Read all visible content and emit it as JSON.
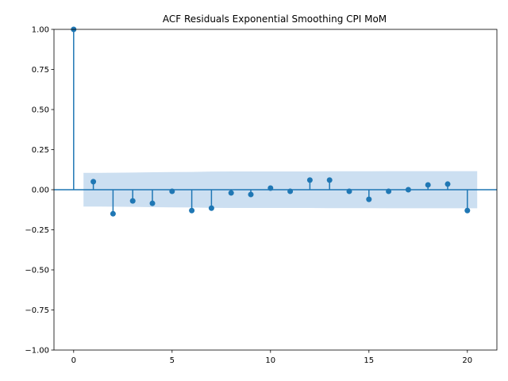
{
  "chart_data": {
    "type": "stem",
    "title": "ACF Residuals Exponential Smoothing CPI MoM",
    "xlabel": "",
    "ylabel": "",
    "xlim": [
      -1,
      21.5
    ],
    "ylim": [
      -1.0,
      1.0
    ],
    "x_ticks": [
      0,
      5,
      10,
      15,
      20
    ],
    "y_ticks": [
      -1.0,
      -0.75,
      -0.5,
      -0.25,
      0.0,
      0.25,
      0.5,
      0.75,
      1.0
    ],
    "y_tick_labels": [
      "−1.00",
      "−0.75",
      "−0.50",
      "−0.25",
      "0.00",
      "0.25",
      "0.50",
      "0.75",
      "1.00"
    ],
    "grid": false,
    "lags": [
      0,
      1,
      2,
      3,
      4,
      5,
      6,
      7,
      8,
      9,
      10,
      11,
      12,
      13,
      14,
      15,
      16,
      17,
      18,
      19,
      20
    ],
    "values": [
      1.0,
      0.05,
      -0.15,
      -0.07,
      -0.085,
      -0.01,
      -0.13,
      -0.115,
      -0.02,
      -0.03,
      0.01,
      -0.01,
      0.06,
      0.06,
      -0.01,
      -0.06,
      -0.01,
      0.0,
      0.03,
      0.035,
      -0.13
    ],
    "confidence_band": {
      "x": [
        0.5,
        1,
        2,
        3,
        4,
        5,
        6,
        7,
        8,
        9,
        10,
        11,
        12,
        13,
        14,
        15,
        16,
        17,
        18,
        19,
        20,
        20.5
      ],
      "upper": [
        0.105,
        0.105,
        0.106,
        0.107,
        0.109,
        0.11,
        0.111,
        0.113,
        0.114,
        0.114,
        0.114,
        0.114,
        0.114,
        0.115,
        0.115,
        0.115,
        0.116,
        0.116,
        0.116,
        0.116,
        0.116,
        0.116
      ]
    },
    "colors": {
      "stem": "#1f77b4",
      "band": "#c6dbef"
    }
  }
}
